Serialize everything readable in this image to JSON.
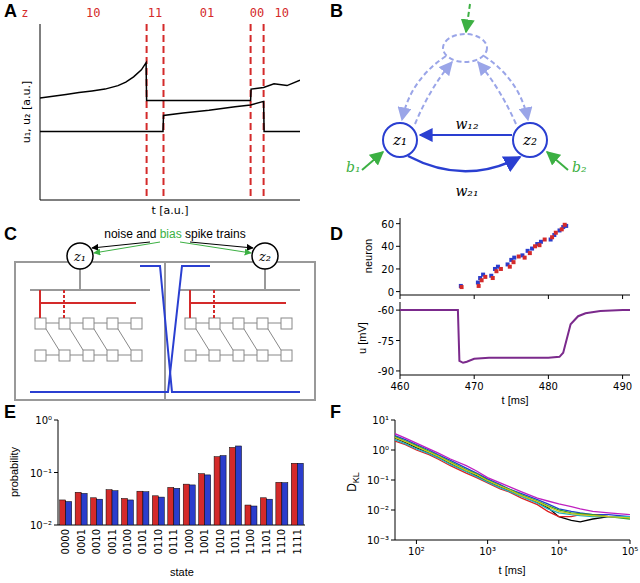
{
  "chart_data": [
    {
      "panel": "A",
      "type": "line",
      "x_label": "t [a.u.]",
      "y_label": "u₁, u₂ [a.u.]",
      "xlim": [
        0,
        10
      ],
      "ylim": [
        0,
        10
      ],
      "tick_labels": false,
      "state_label": "z",
      "states": [
        "10",
        "11",
        "01",
        "00",
        "10"
      ],
      "state_boundaries": [
        4.1,
        4.75,
        8.1,
        8.6
      ],
      "series": [
        {
          "color": "#000000",
          "x": [
            0,
            0.5,
            1,
            1.5,
            2,
            2.5,
            3,
            3.3,
            3.6,
            3.9,
            4.08,
            4.1,
            6,
            8.1,
            8.12,
            8.6,
            9,
            9.5,
            10
          ],
          "values": [
            5.8,
            5.9,
            6.0,
            6.1,
            6.2,
            6.3,
            6.5,
            6.7,
            7.0,
            7.4,
            7.8,
            5.65,
            5.65,
            5.65,
            6.3,
            6.4,
            6.6,
            6.5,
            6.8
          ]
        },
        {
          "color": "#000000",
          "x": [
            0,
            2,
            4.73,
            4.75,
            5.5,
            6.5,
            7.5,
            8.1,
            8.6,
            8.62,
            10
          ],
          "values": [
            3.9,
            3.9,
            3.9,
            4.8,
            4.95,
            5.1,
            5.3,
            5.4,
            5.6,
            3.9,
            3.9
          ]
        }
      ]
    },
    {
      "panel": "D",
      "type": "scatter",
      "y_label": "neuron",
      "xlim": [
        460,
        491
      ],
      "ylim": [
        -3,
        65
      ],
      "xticks": [
        460,
        470,
        480,
        490
      ],
      "yticks": [
        0,
        20,
        40,
        60
      ],
      "tick_labels": "y",
      "marker": "square",
      "series": [
        {
          "color": "#2b3dcc",
          "x": [
            468.2,
            470.5,
            470.8,
            471.2,
            472.3,
            472.8,
            473.2,
            474.5,
            475.0,
            475.4,
            476.5,
            477.2,
            477.8,
            478.5,
            479.0,
            480.3,
            480.8,
            481.5,
            482.0,
            482.4
          ],
          "values": [
            5,
            8,
            12,
            15,
            14,
            20,
            22,
            24,
            28,
            30,
            32,
            36,
            38,
            42,
            44,
            46,
            50,
            54,
            57,
            58
          ]
        },
        {
          "color": "#d42a2a",
          "x": [
            468.3,
            470.6,
            471.0,
            471.5,
            472.5,
            473.0,
            473.6,
            474.8,
            475.3,
            476.0,
            476.8,
            477.5,
            478.2,
            478.8,
            479.5,
            480.5,
            481.0,
            481.8,
            482.2
          ],
          "values": [
            4,
            5,
            10,
            13,
            12,
            18,
            20,
            22,
            26,
            31,
            30,
            34,
            40,
            41,
            46,
            48,
            52,
            55,
            59
          ]
        }
      ]
    },
    {
      "type": "line",
      "x_label": "t [ms]",
      "y_label": "u [mV]",
      "xlim": [
        460,
        491
      ],
      "ylim": [
        -92,
        -56
      ],
      "xticks": [
        460,
        470,
        480,
        490
      ],
      "yticks": [
        -90,
        -75,
        -60
      ],
      "series": [
        {
          "color": "#7b2a8c",
          "x": [
            460,
            467.8,
            468,
            468.5,
            469,
            470,
            472,
            475,
            478,
            480,
            481.5,
            482,
            482.5,
            483,
            484,
            485,
            487,
            490,
            491
          ],
          "values": [
            -60,
            -60,
            -85,
            -86,
            -85.5,
            -84,
            -83.5,
            -83.5,
            -83.5,
            -83.5,
            -83,
            -81,
            -74,
            -67,
            -63,
            -61.5,
            -60.5,
            -60,
            -60
          ]
        }
      ]
    },
    {
      "panel": "E",
      "type": "bar",
      "x_label": "state",
      "y_label": "probability",
      "log": "y",
      "ylim": [
        0.01,
        1
      ],
      "yticks": [
        {
          "value": 0.01,
          "label": "10⁻²"
        },
        {
          "value": 0.1,
          "label": "10⁻¹"
        },
        {
          "value": 1,
          "label": "10⁰"
        }
      ],
      "categories": [
        "0000",
        "0001",
        "0010",
        "0011",
        "0100",
        "0101",
        "0110",
        "0111",
        "1000",
        "1001",
        "1010",
        "1011",
        "1100",
        "1101",
        "1110",
        "1111"
      ],
      "series": [
        {
          "color": "#d42a2a",
          "values": [
            0.03,
            0.042,
            0.033,
            0.047,
            0.032,
            0.044,
            0.036,
            0.052,
            0.06,
            0.095,
            0.2,
            0.3,
            0.024,
            0.033,
            0.065,
            0.15
          ]
        },
        {
          "color": "#2b3dcc",
          "values": [
            0.028,
            0.04,
            0.031,
            0.045,
            0.03,
            0.043,
            0.034,
            0.05,
            0.058,
            0.09,
            0.21,
            0.32,
            0.023,
            0.031,
            0.064,
            0.15
          ]
        }
      ]
    },
    {
      "panel": "F",
      "type": "line",
      "x_label": "t [ms]",
      "y_label": {
        "text": "D",
        "subscript": "KL"
      },
      "log": true,
      "xlim": [
        50,
        100000
      ],
      "xticks": [
        {
          "value": 100,
          "label": "10²"
        },
        {
          "value": 1000,
          "label": "10³"
        },
        {
          "value": 10000,
          "label": "10⁴"
        },
        {
          "value": 100000,
          "label": "10⁵"
        }
      ],
      "ylim": [
        0.001,
        10
      ],
      "yticks": [
        {
          "value": 0.001,
          "label": "10⁻³"
        },
        {
          "value": 0.01,
          "label": "10⁻²"
        },
        {
          "value": 0.1,
          "label": "10⁻¹"
        },
        {
          "value": 1,
          "label": "10⁰"
        },
        {
          "value": 10,
          "label": "10¹"
        }
      ],
      "x": [
        50,
        70,
        100,
        150,
        200,
        300,
        500,
        700,
        1000,
        1500,
        2000,
        3000,
        5000,
        7000,
        10000,
        15000,
        20000,
        30000,
        50000,
        100000
      ],
      "series": [
        {
          "color": "#000000",
          "values": [
            2.5,
            1.8,
            1.2,
            0.8,
            0.6,
            0.35,
            0.2,
            0.14,
            0.09,
            0.06,
            0.045,
            0.03,
            0.018,
            0.012,
            0.006,
            0.0045,
            0.004,
            0.005,
            0.006,
            0.006
          ]
        },
        {
          "color": "#1f3fd0",
          "values": [
            3.0,
            2.2,
            1.5,
            1.0,
            0.7,
            0.45,
            0.25,
            0.17,
            0.11,
            0.07,
            0.05,
            0.035,
            0.022,
            0.016,
            0.011,
            0.009,
            0.008,
            0.007,
            0.007,
            0.006
          ]
        },
        {
          "color": "#e02020",
          "values": [
            2.0,
            1.5,
            1.0,
            0.7,
            0.5,
            0.3,
            0.17,
            0.12,
            0.08,
            0.05,
            0.04,
            0.025,
            0.015,
            0.009,
            0.006,
            0.006,
            0.007,
            0.007,
            0.006,
            0.006
          ]
        },
        {
          "color": "#2ca02c",
          "values": [
            2.8,
            2.0,
            1.4,
            0.9,
            0.65,
            0.4,
            0.22,
            0.16,
            0.1,
            0.065,
            0.05,
            0.032,
            0.02,
            0.014,
            0.01,
            0.008,
            0.0075,
            0.007,
            0.006,
            0.005
          ]
        },
        {
          "color": "#c020c0",
          "values": [
            3.5,
            2.5,
            1.7,
            1.1,
            0.8,
            0.5,
            0.3,
            0.2,
            0.12,
            0.08,
            0.06,
            0.04,
            0.025,
            0.02,
            0.016,
            0.013,
            0.011,
            0.009,
            0.008,
            0.007
          ]
        },
        {
          "color": "#20b0c0",
          "values": [
            2.2,
            1.6,
            1.1,
            0.75,
            0.55,
            0.33,
            0.19,
            0.13,
            0.085,
            0.055,
            0.042,
            0.028,
            0.017,
            0.011,
            0.008,
            0.007,
            0.0065,
            0.006,
            0.006,
            0.006
          ]
        },
        {
          "color": "#c8c820",
          "values": [
            2.6,
            1.9,
            1.3,
            0.85,
            0.62,
            0.38,
            0.21,
            0.15,
            0.095,
            0.062,
            0.047,
            0.03,
            0.019,
            0.013,
            0.009,
            0.0075,
            0.007,
            0.0065,
            0.006,
            0.0055
          ]
        }
      ]
    }
  ],
  "diagrams": {
    "B": {
      "panel": "B",
      "nodes": [
        {
          "label": "z₁"
        },
        {
          "label": "z₂"
        }
      ],
      "weights": [
        "w₁₂",
        "w₂₁"
      ],
      "biases": [
        "b₁",
        "b₂"
      ]
    },
    "C": {
      "panel": "C",
      "input_label_parts": [
        "noise and",
        "bias",
        "spike trains"
      ],
      "nodes": [
        {
          "label": "z₁"
        },
        {
          "label": "z₂"
        }
      ]
    }
  }
}
